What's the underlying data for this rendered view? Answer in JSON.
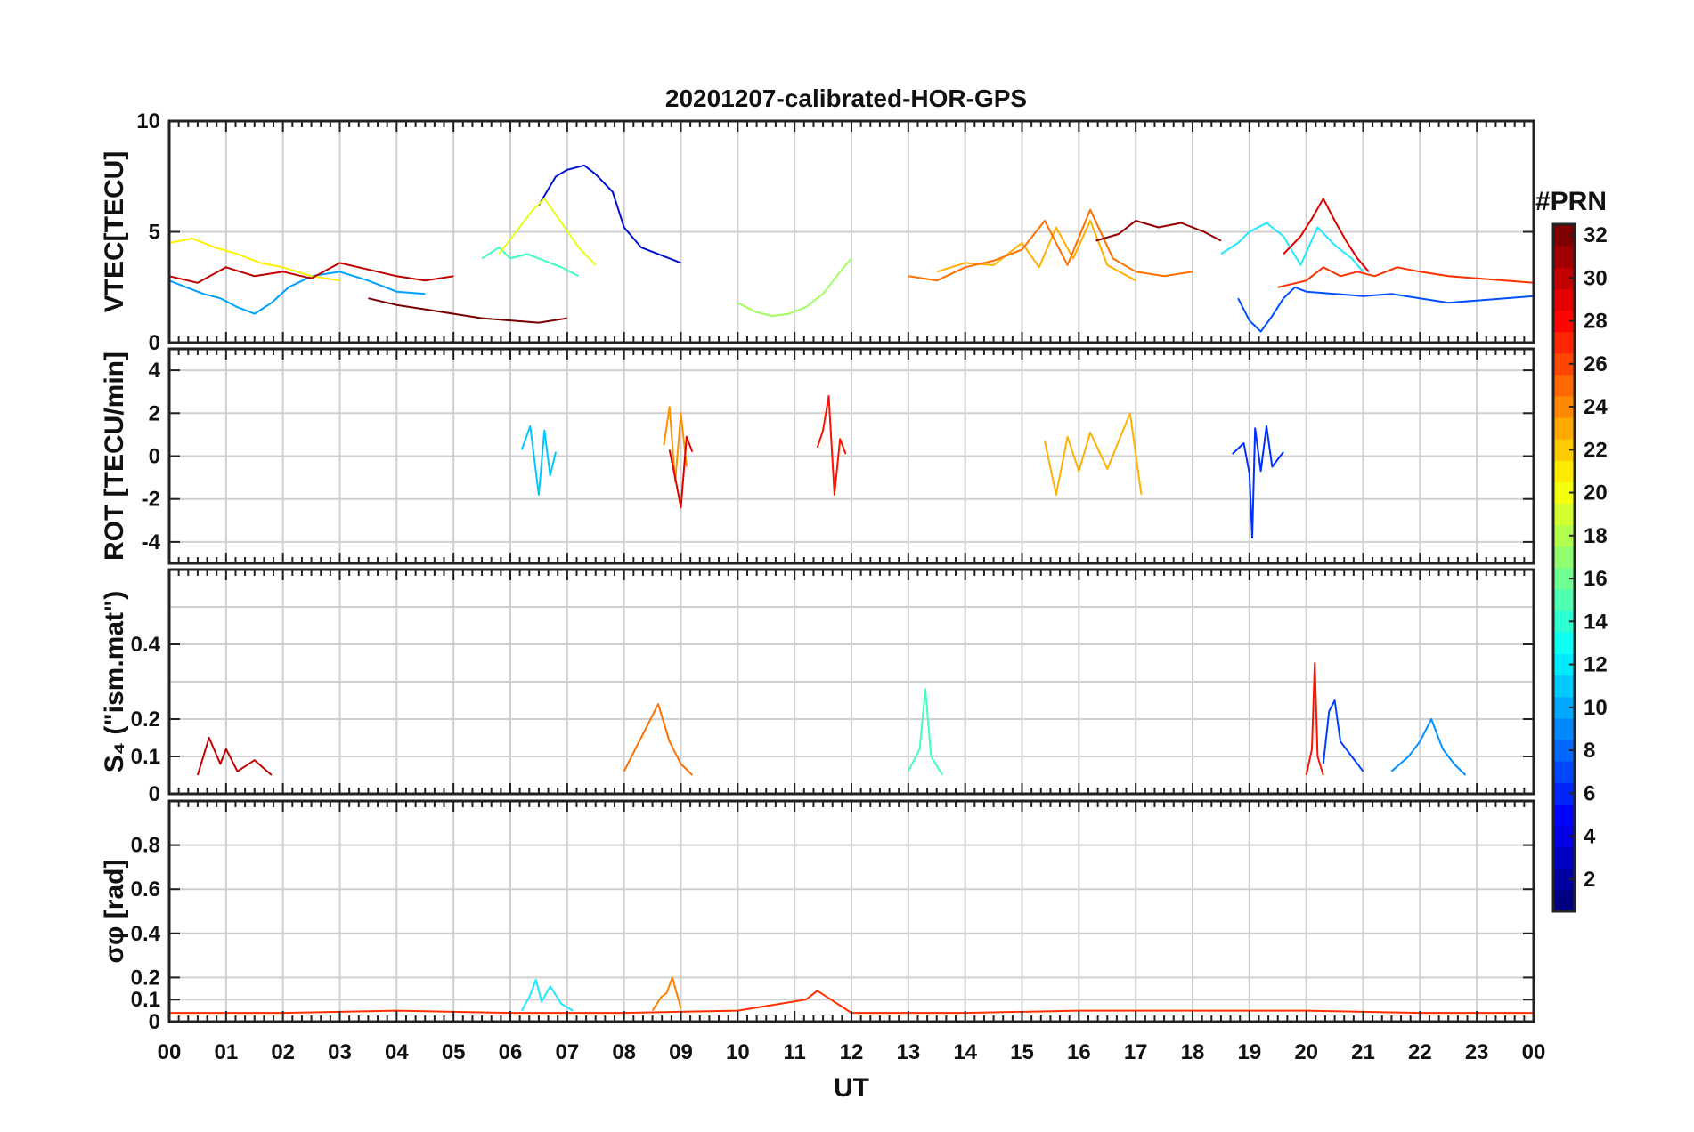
{
  "chart_data": {
    "type": "line",
    "title": "20201207-calibrated-HOR-GPS",
    "xlabel": "UT",
    "x_ticks": [
      "00",
      "01",
      "02",
      "03",
      "04",
      "05",
      "06",
      "07",
      "08",
      "09",
      "10",
      "11",
      "12",
      "13",
      "14",
      "15",
      "16",
      "17",
      "18",
      "19",
      "20",
      "21",
      "22",
      "23",
      "00"
    ],
    "xlim": [
      0,
      24
    ],
    "colorbar": {
      "label": "#PRN",
      "range": [
        1,
        32
      ],
      "ticks": [
        "2",
        "4",
        "6",
        "8",
        "10",
        "12",
        "14",
        "16",
        "18",
        "20",
        "22",
        "24",
        "26",
        "28",
        "30",
        "32"
      ],
      "colormap": "jet"
    },
    "panels": [
      {
        "key": "vtec",
        "ylabel": "VTEC[TECU]",
        "ylim": [
          0,
          10
        ],
        "yticks": [
          0,
          5,
          10
        ],
        "grid": [
          0,
          5,
          10
        ],
        "series": [
          {
            "prn": 2,
            "color": "#0010d0",
            "x": [
              6.5,
              6.8,
              7.0,
              7.3,
              7.5,
              7.8,
              8.0,
              8.3,
              8.6,
              9.0
            ],
            "y": [
              6.2,
              7.5,
              7.8,
              8.0,
              7.6,
              6.8,
              5.2,
              4.3,
              4.0,
              3.6
            ]
          },
          {
            "prn": 5,
            "color": "#0050ff",
            "x": [
              18.8,
              19.0,
              19.2,
              19.4,
              19.6,
              19.8,
              20.0,
              20.5,
              21.0,
              21.5,
              22.0,
              22.5,
              23.0,
              23.5,
              24.0
            ],
            "y": [
              2.0,
              1.0,
              0.5,
              1.2,
              2.0,
              2.5,
              2.3,
              2.2,
              2.1,
              2.2,
              2.0,
              1.8,
              1.9,
              2.0,
              2.1
            ]
          },
          {
            "prn": 8,
            "color": "#00a0ff",
            "x": [
              0.0,
              0.3,
              0.6,
              0.9,
              1.2,
              1.5,
              1.8,
              2.1,
              2.5,
              3.0,
              3.5,
              4.0,
              4.5
            ],
            "y": [
              2.8,
              2.5,
              2.2,
              2.0,
              1.6,
              1.3,
              1.8,
              2.5,
              3.0,
              3.2,
              2.8,
              2.3,
              2.2
            ]
          },
          {
            "prn": 12,
            "color": "#20e8ff",
            "x": [
              18.5,
              18.8,
              19.0,
              19.3,
              19.6,
              19.9,
              20.2,
              20.5,
              20.8,
              21.0
            ],
            "y": [
              4.0,
              4.5,
              5.0,
              5.4,
              4.8,
              3.5,
              5.2,
              4.4,
              3.8,
              3.2
            ]
          },
          {
            "prn": 14,
            "color": "#40ffc0",
            "x": [
              5.5,
              5.8,
              6.0,
              6.3,
              6.6,
              6.9,
              7.2
            ],
            "y": [
              3.8,
              4.3,
              3.8,
              4.0,
              3.7,
              3.4,
              3.0
            ]
          },
          {
            "prn": 17,
            "color": "#a0ff60",
            "x": [
              10.0,
              10.3,
              10.6,
              10.9,
              11.2,
              11.5,
              11.8,
              12.0
            ],
            "y": [
              1.8,
              1.4,
              1.2,
              1.3,
              1.6,
              2.2,
              3.2,
              3.8
            ]
          },
          {
            "prn": 19,
            "color": "#e8ff20",
            "x": [
              5.8,
              6.1,
              6.4,
              6.6,
              6.9,
              7.2,
              7.5
            ],
            "y": [
              4.0,
              5.0,
              6.0,
              6.5,
              5.4,
              4.3,
              3.5
            ]
          },
          {
            "prn": 21,
            "color": "#fff000",
            "x": [
              0.0,
              0.4,
              0.8,
              1.2,
              1.6,
              2.0,
              2.5,
              3.0
            ],
            "y": [
              4.5,
              4.7,
              4.3,
              4.0,
              3.6,
              3.4,
              3.0,
              2.8
            ]
          },
          {
            "prn": 23,
            "color": "#ffb000",
            "x": [
              13.5,
              14.0,
              14.5,
              15.0,
              15.3,
              15.6,
              15.9,
              16.2,
              16.5,
              17.0
            ],
            "y": [
              3.2,
              3.6,
              3.5,
              4.5,
              3.4,
              5.2,
              3.8,
              5.5,
              3.5,
              2.8
            ]
          },
          {
            "prn": 25,
            "color": "#ff7000",
            "x": [
              13.0,
              13.5,
              14.0,
              14.5,
              15.0,
              15.4,
              15.8,
              16.2,
              16.6,
              17.0,
              17.5,
              18.0
            ],
            "y": [
              3.0,
              2.8,
              3.4,
              3.7,
              4.2,
              5.5,
              3.5,
              6.0,
              3.8,
              3.2,
              3.0,
              3.2
            ]
          },
          {
            "prn": 27,
            "color": "#ff3000",
            "x": [
              19.5,
              20.0,
              20.3,
              20.6,
              20.9,
              21.2,
              21.6,
              22.0,
              22.5,
              23.0,
              23.5,
              24.0
            ],
            "y": [
              2.5,
              2.8,
              3.4,
              3.0,
              3.2,
              3.0,
              3.4,
              3.2,
              3.0,
              2.9,
              2.8,
              2.7
            ]
          },
          {
            "prn": 29,
            "color": "#e00000",
            "x": [
              19.6,
              19.9,
              20.1,
              20.3,
              20.5,
              20.7,
              20.9,
              21.1
            ],
            "y": [
              4.0,
              4.8,
              5.6,
              6.5,
              5.5,
              4.6,
              3.8,
              3.2
            ]
          },
          {
            "prn": 30,
            "color": "#c00000",
            "x": [
              0.0,
              0.5,
              1.0,
              1.5,
              2.0,
              2.5,
              3.0,
              3.5,
              4.0,
              4.5,
              5.0
            ],
            "y": [
              3.0,
              2.7,
              3.4,
              3.0,
              3.2,
              2.9,
              3.6,
              3.3,
              3.0,
              2.8,
              3.0
            ]
          },
          {
            "prn": 32,
            "color": "#7a0000",
            "x": [
              3.5,
              4.0,
              4.5,
              5.0,
              5.5,
              6.0,
              6.5,
              7.0
            ],
            "y": [
              2.0,
              1.7,
              1.5,
              1.3,
              1.1,
              1.0,
              0.9,
              1.1
            ]
          },
          {
            "prn": 31,
            "color": "#900000",
            "x": [
              16.3,
              16.7,
              17.0,
              17.4,
              17.8,
              18.2,
              18.5
            ],
            "y": [
              4.6,
              4.9,
              5.5,
              5.2,
              5.4,
              5.0,
              4.6
            ]
          }
        ]
      },
      {
        "key": "rot",
        "ylabel": "ROT [TECU/min]",
        "ylim": [
          -5,
          5
        ],
        "yticks": [
          -4,
          -2,
          0,
          2,
          4
        ],
        "grid": [
          -4,
          -2,
          0,
          2,
          4
        ],
        "series": [
          {
            "prn": 4,
            "color": "#0030ff",
            "x": [
              18.7,
              18.9,
              19.0,
              19.05,
              19.1,
              19.2,
              19.3,
              19.4,
              19.6
            ],
            "y": [
              0.1,
              0.6,
              -0.8,
              -3.8,
              1.3,
              -0.7,
              1.4,
              -0.5,
              0.2
            ]
          },
          {
            "prn": 11,
            "color": "#00c8ff",
            "x": [
              6.2,
              6.35,
              6.5,
              6.6,
              6.7,
              6.8
            ],
            "y": [
              0.3,
              1.4,
              -1.8,
              1.2,
              -0.9,
              0.2
            ]
          },
          {
            "prn": 22,
            "color": "#ff9000",
            "x": [
              8.7,
              8.8,
              8.9,
              9.0,
              9.1
            ],
            "y": [
              0.5,
              2.3,
              -1.2,
              2.0,
              -0.5
            ]
          },
          {
            "prn": 28,
            "color": "#ff1000",
            "x": [
              11.4,
              11.5,
              11.6,
              11.7,
              11.8,
              11.9
            ],
            "y": [
              0.4,
              1.2,
              2.8,
              -1.8,
              0.8,
              0.1
            ]
          },
          {
            "prn": 29,
            "color": "#e00000",
            "x": [
              8.8,
              8.9,
              9.0,
              9.1,
              9.2
            ],
            "y": [
              0.3,
              -1.0,
              -2.4,
              0.9,
              0.2
            ]
          },
          {
            "prn": 23,
            "color": "#ffb000",
            "x": [
              15.4,
              15.6,
              15.8,
              16.0,
              16.2,
              16.5,
              16.9,
              17.1
            ],
            "y": [
              0.7,
              -1.8,
              0.9,
              -0.7,
              1.1,
              -0.6,
              2.0,
              -1.8
            ]
          }
        ]
      },
      {
        "key": "s4",
        "ylabel": "S₄ (\"ism.mat\")",
        "ylim": [
          0,
          0.6
        ],
        "yticks": [
          0,
          0.1,
          0.2,
          0.4
        ],
        "grid": [
          0.1,
          0.2,
          0.3,
          0.4,
          0.5
        ],
        "series": [
          {
            "prn": 30,
            "color": "#c00000",
            "x": [
              0.5,
              0.7,
              0.9,
              1.0,
              1.2,
              1.5,
              1.8
            ],
            "y": [
              0.05,
              0.15,
              0.08,
              0.12,
              0.06,
              0.09,
              0.05
            ]
          },
          {
            "prn": 25,
            "color": "#ff7000",
            "x": [
              8.0,
              8.2,
              8.4,
              8.6,
              8.8,
              9.0,
              9.2
            ],
            "y": [
              0.06,
              0.12,
              0.18,
              0.24,
              0.14,
              0.08,
              0.05
            ]
          },
          {
            "prn": 10,
            "color": "#0090ff",
            "x": [
              21.5,
              21.8,
              22.0,
              22.2,
              22.4,
              22.6,
              22.8
            ],
            "y": [
              0.06,
              0.1,
              0.14,
              0.2,
              0.12,
              0.08,
              0.05
            ]
          },
          {
            "prn": 6,
            "color": "#0040ff",
            "x": [
              20.3,
              20.4,
              20.5,
              20.6,
              20.8,
              21.0
            ],
            "y": [
              0.08,
              0.22,
              0.25,
              0.14,
              0.1,
              0.06
            ]
          },
          {
            "prn": 28,
            "color": "#ff1000",
            "x": [
              20.0,
              20.1,
              20.15,
              20.2,
              20.3
            ],
            "y": [
              0.05,
              0.12,
              0.35,
              0.1,
              0.05
            ]
          },
          {
            "prn": 14,
            "color": "#40ffc0",
            "x": [
              13.0,
              13.2,
              13.3,
              13.4,
              13.6
            ],
            "y": [
              0.06,
              0.12,
              0.28,
              0.1,
              0.05
            ]
          }
        ]
      },
      {
        "key": "sigphi",
        "ylabel": "σφ [rad]",
        "ylim": [
          0,
          1.0
        ],
        "yticks": [
          0,
          0.1,
          0.2,
          0.4,
          0.6,
          0.8
        ],
        "grid": [
          0.1,
          0.2,
          0.4,
          0.6,
          0.8
        ],
        "series": [
          {
            "prn": 12,
            "color": "#20e8ff",
            "x": [
              6.2,
              6.35,
              6.45,
              6.55,
              6.7,
              6.9,
              7.1
            ],
            "y": [
              0.05,
              0.12,
              0.19,
              0.09,
              0.16,
              0.08,
              0.05
            ]
          },
          {
            "prn": 24,
            "color": "#ff8000",
            "x": [
              8.5,
              8.65,
              8.75,
              8.85,
              9.0
            ],
            "y": [
              0.05,
              0.11,
              0.13,
              0.2,
              0.06
            ]
          },
          {
            "prn": 27,
            "color": "#ff3000",
            "x": [
              0,
              2,
              4,
              6,
              8,
              10,
              11.2,
              11.4,
              12,
              14,
              16,
              18,
              20,
              22,
              24
            ],
            "y": [
              0.04,
              0.04,
              0.05,
              0.04,
              0.04,
              0.05,
              0.1,
              0.14,
              0.04,
              0.04,
              0.05,
              0.05,
              0.05,
              0.04,
              0.04
            ]
          }
        ]
      }
    ]
  }
}
